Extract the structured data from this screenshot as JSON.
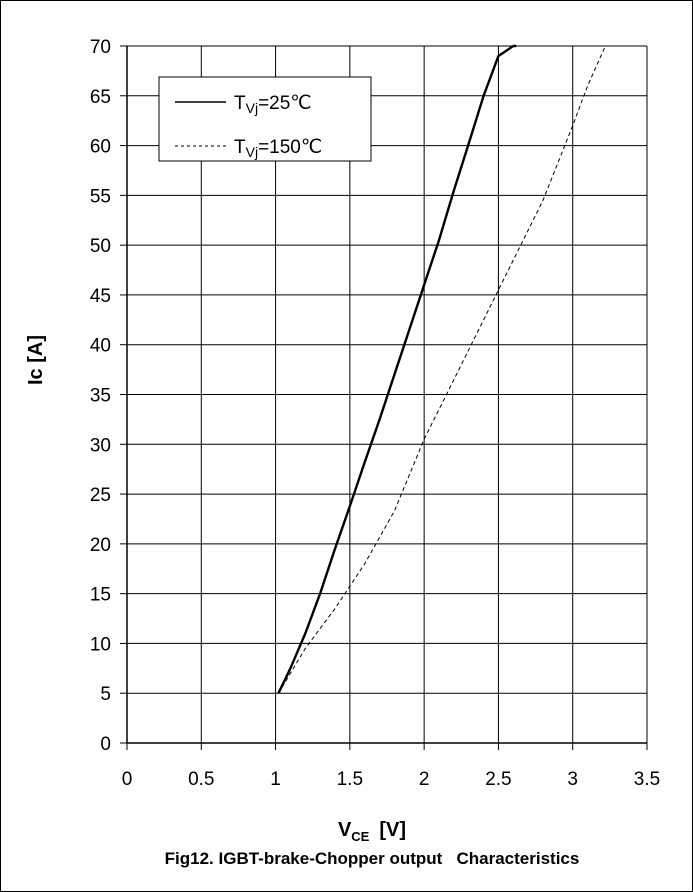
{
  "chart_data": {
    "type": "line",
    "caption": "Fig12. IGBT-brake-Chopper output   Characteristics",
    "xlabel": {
      "main": "V",
      "sub": "CE",
      "unit": "[V]"
    },
    "ylabel": "Ic   [A]",
    "xlim": [
      0,
      3.5
    ],
    "ylim": [
      0,
      70
    ],
    "x_ticks": [
      "0",
      "0.5",
      "1",
      "1.5",
      "2",
      "2.5",
      "3",
      "3.5"
    ],
    "y_ticks": [
      "0",
      "5",
      "10",
      "15",
      "20",
      "25",
      "30",
      "35",
      "40",
      "45",
      "50",
      "55",
      "60",
      "65",
      "70"
    ],
    "grid": true,
    "legend_position": "top-left",
    "series": [
      {
        "name": "TVj=25℃",
        "label_main": "T",
        "label_sub": "Vj",
        "label_rest": "=25℃",
        "style": "solid",
        "color": "#000000",
        "x": [
          1.02,
          1.1,
          1.2,
          1.3,
          1.4,
          1.5,
          1.6,
          1.7,
          1.8,
          1.9,
          2.0,
          2.1,
          2.2,
          2.3,
          2.4,
          2.5,
          2.6,
          2.62
        ],
        "y": [
          5,
          7.5,
          11,
          15,
          19.5,
          23.8,
          28.2,
          32.5,
          37,
          41.5,
          46,
          50.5,
          55.5,
          60.2,
          65,
          69,
          70,
          70
        ]
      },
      {
        "name": "TVj=150℃",
        "label_main": "T",
        "label_sub": "Vj",
        "label_rest": "=150℃",
        "style": "dashed",
        "color": "#000000",
        "x": [
          1.02,
          1.2,
          1.4,
          1.6,
          1.8,
          2.0,
          2.2,
          2.4,
          2.6,
          2.8,
          3.0,
          3.1,
          3.22
        ],
        "y": [
          5,
          9.5,
          13.5,
          18,
          23.3,
          30.5,
          36.5,
          42.5,
          48.5,
          54.5,
          62,
          66,
          70
        ]
      }
    ]
  }
}
